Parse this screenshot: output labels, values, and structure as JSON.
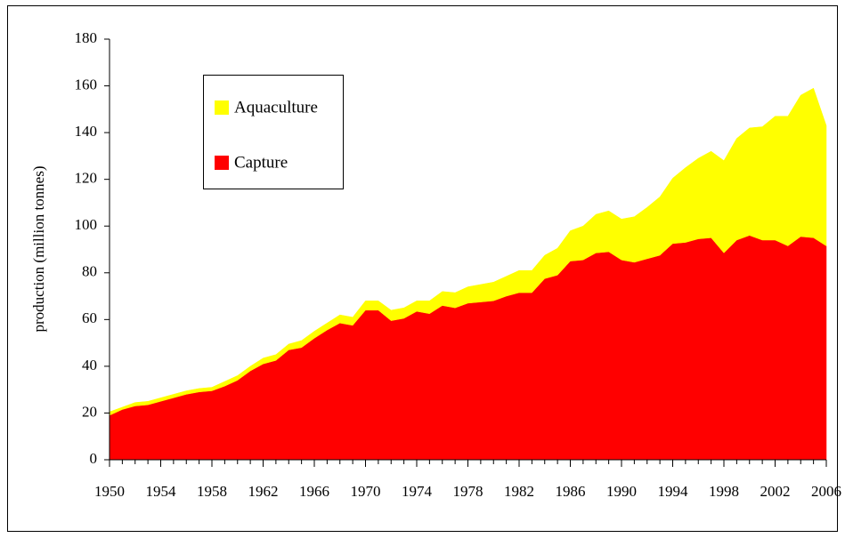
{
  "chart_data": {
    "type": "stacked_area",
    "y_label": "production (million tonnes)",
    "x": [
      1950,
      1951,
      1952,
      1953,
      1954,
      1955,
      1956,
      1957,
      1958,
      1959,
      1960,
      1961,
      1962,
      1963,
      1964,
      1965,
      1966,
      1967,
      1968,
      1969,
      1970,
      1971,
      1972,
      1973,
      1974,
      1975,
      1976,
      1977,
      1978,
      1979,
      1980,
      1981,
      1982,
      1983,
      1984,
      1985,
      1986,
      1987,
      1988,
      1989,
      1990,
      1991,
      1992,
      1993,
      1994,
      1995,
      1996,
      1997,
      1998,
      1999,
      2000,
      2001,
      2002,
      2003,
      2004,
      2005,
      2006
    ],
    "series": [
      {
        "name": "Capture",
        "color": "#ff0000",
        "values": [
          19,
          21.5,
          23,
          23.5,
          25,
          26.5,
          28,
          29,
          29.5,
          31.5,
          34,
          38,
          41,
          42.5,
          47,
          48,
          52,
          55.5,
          58.5,
          57.5,
          64,
          64,
          59.5,
          60.5,
          63.5,
          62.5,
          66,
          65,
          67,
          67.5,
          68,
          70,
          71.5,
          71.5,
          77.5,
          79,
          85,
          85.5,
          88.5,
          89,
          85.5,
          84.5,
          86,
          87.5,
          92.5,
          93,
          94.5,
          95,
          88.5,
          94,
          96,
          94,
          94,
          91.5,
          95.5,
          95,
          91.5
        ]
      },
      {
        "name": "Aquaculture",
        "color": "#ffff00",
        "values": [
          1.5,
          1,
          1.5,
          1.5,
          1.5,
          1.5,
          1.5,
          1.5,
          1.5,
          2,
          2,
          2,
          2.5,
          2.5,
          2.5,
          3,
          3,
          3,
          3.5,
          3.5,
          4,
          4,
          4.5,
          4.5,
          4.5,
          5.5,
          6,
          6.5,
          7,
          7.5,
          8,
          8.5,
          9.5,
          9.5,
          10,
          11.5,
          13,
          14.5,
          16.5,
          17.5,
          17.5,
          19.5,
          22,
          25,
          28,
          32,
          34.5,
          37,
          39.5,
          43.5,
          46,
          48.5,
          53,
          55.5,
          60.5,
          64,
          51.5
        ]
      }
    ],
    "xlim": [
      1950,
      2006
    ],
    "xticks": [
      1950,
      1954,
      1958,
      1962,
      1966,
      1970,
      1974,
      1978,
      1982,
      1986,
      1990,
      1994,
      1998,
      2002,
      2006
    ],
    "ylim": [
      0,
      180
    ],
    "yticks": [
      0,
      20,
      40,
      60,
      80,
      100,
      120,
      140,
      160,
      180
    ]
  }
}
